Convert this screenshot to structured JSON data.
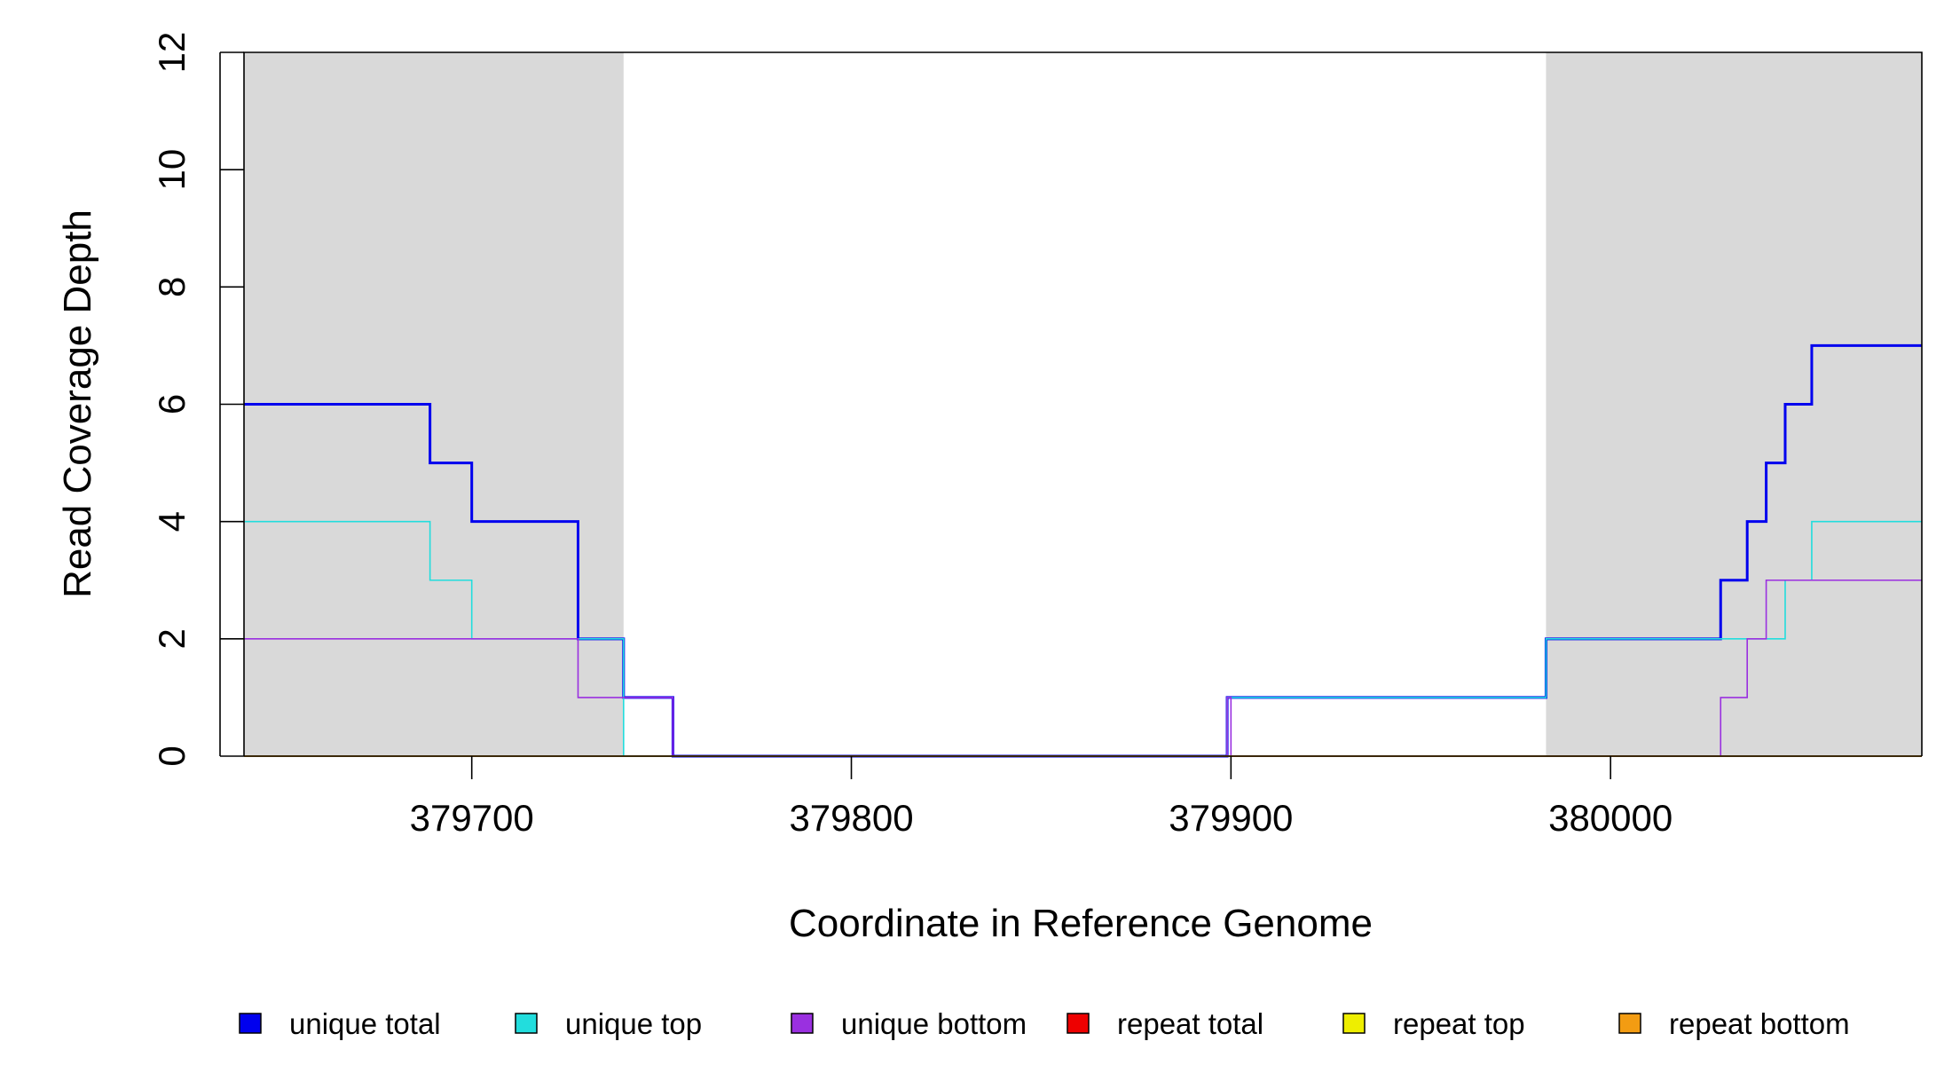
{
  "chart_data": {
    "type": "line",
    "step": true,
    "title": "",
    "xlabel": "Coordinate in Reference Genome",
    "ylabel": "Read Coverage Depth",
    "xlim": [
      379640,
      380082
    ],
    "ylim": [
      0,
      12
    ],
    "x_ticks": [
      379700,
      379800,
      379900,
      380000
    ],
    "x_tick_labels": [
      "379700",
      "379800",
      "379900",
      "380000"
    ],
    "y_ticks": [
      0,
      2,
      4,
      6,
      8,
      10,
      12
    ],
    "y_tick_labels": [
      "0",
      "2",
      "4",
      "6",
      "8",
      "10",
      "12"
    ],
    "shaded_regions": [
      {
        "x0": 379640,
        "x1": 379740,
        "color": "#d9d9d9"
      },
      {
        "x0": 379983,
        "x1": 380082,
        "color": "#d9d9d9"
      }
    ],
    "legend_position": "bottom",
    "series": [
      {
        "name": "unique total",
        "color": "#0000ee",
        "width": 3,
        "points": [
          [
            379640,
            6
          ],
          [
            379689,
            5
          ],
          [
            379700,
            4
          ],
          [
            379728,
            2
          ],
          [
            379740,
            1
          ],
          [
            379753,
            0
          ],
          [
            379899,
            1
          ],
          [
            379983,
            2
          ],
          [
            380029,
            3
          ],
          [
            380036,
            4
          ],
          [
            380041,
            5
          ],
          [
            380046,
            6
          ],
          [
            380053,
            7
          ],
          [
            380082,
            7
          ]
        ]
      },
      {
        "name": "unique top",
        "color": "#22dddd",
        "width": 1.6,
        "points": [
          [
            379640,
            4
          ],
          [
            379689,
            3
          ],
          [
            379700,
            2
          ],
          [
            379740,
            0
          ],
          [
            379899,
            1
          ],
          [
            379983,
            2
          ],
          [
            380046,
            3
          ],
          [
            380053,
            4
          ],
          [
            380082,
            4
          ]
        ]
      },
      {
        "name": "unique bottom",
        "color": "#9a30e0",
        "width": 1.6,
        "points": [
          [
            379640,
            2
          ],
          [
            379728,
            1
          ],
          [
            379753,
            0
          ],
          [
            379899,
            1
          ],
          [
            379900,
            0
          ],
          [
            380029,
            1
          ],
          [
            380036,
            2
          ],
          [
            380041,
            3
          ],
          [
            380082,
            3
          ]
        ]
      },
      {
        "name": "repeat total",
        "color": "#ee0000",
        "width": 1.6,
        "points": [
          [
            379640,
            0
          ],
          [
            380082,
            0
          ]
        ]
      },
      {
        "name": "repeat top",
        "color": "#eeee00",
        "width": 1.6,
        "points": [
          [
            379640,
            0
          ],
          [
            380082,
            0
          ]
        ]
      },
      {
        "name": "repeat bottom",
        "color": "#f39c12",
        "width": 1.6,
        "points": [
          [
            379640,
            0
          ],
          [
            380082,
            0
          ]
        ]
      }
    ]
  }
}
